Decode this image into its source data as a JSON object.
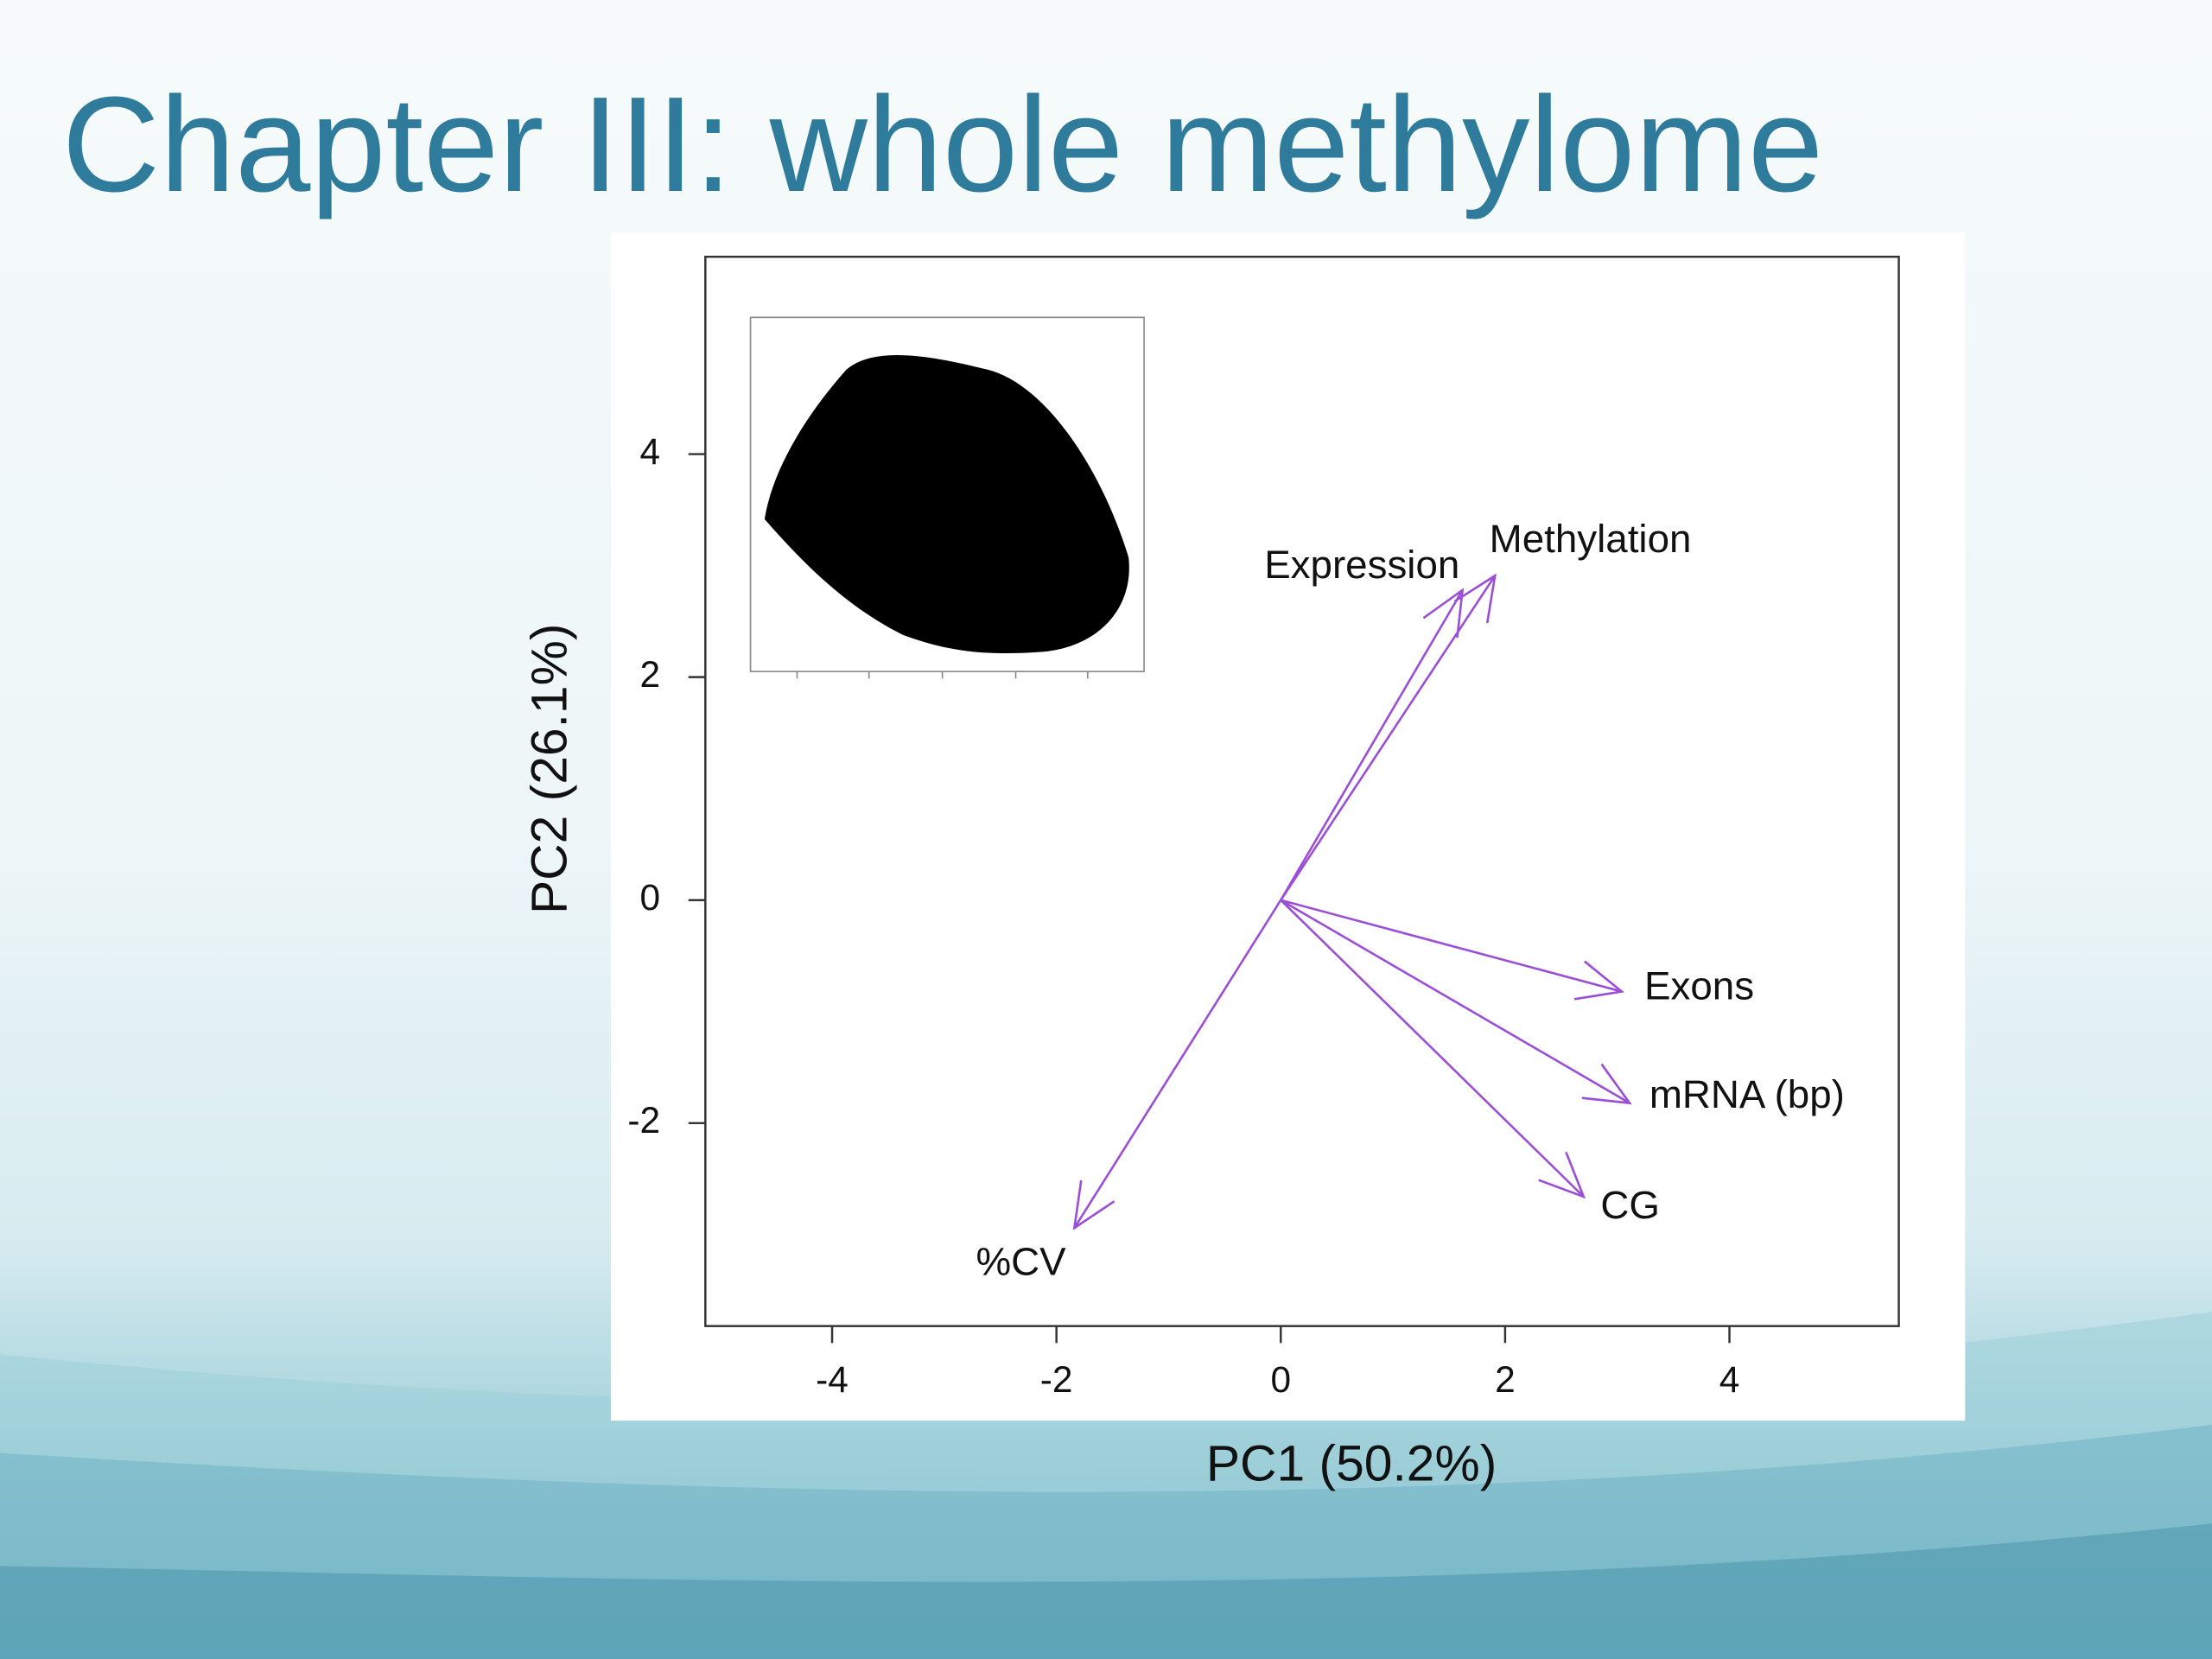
{
  "slide_title": "Chapter III: whole methylome",
  "chart_data": {
    "type": "biplot",
    "xlabel": "PC1 (50.2%)",
    "ylabel": "PC2 (26.1%)",
    "xlim": [
      -5.13,
      5.51
    ],
    "ylim": [
      -3.82,
      5.77
    ],
    "xticks": [
      -4,
      -2,
      0,
      2,
      4
    ],
    "yticks": [
      -2,
      0,
      2,
      4
    ],
    "color": "#9b4fd6",
    "series": [
      {
        "name": "Expression",
        "x": 1.62,
        "y": 2.78
      },
      {
        "name": "Methylation",
        "x": 1.91,
        "y": 2.91
      },
      {
        "name": "Exons",
        "x": 3.04,
        "y": -0.82
      },
      {
        "name": "mRNA (bp)",
        "x": 3.11,
        "y": -1.82
      },
      {
        "name": "CG",
        "x": 2.7,
        "y": -2.66
      },
      {
        "name": "%CV",
        "x": -1.84,
        "y": -2.94
      }
    ]
  }
}
